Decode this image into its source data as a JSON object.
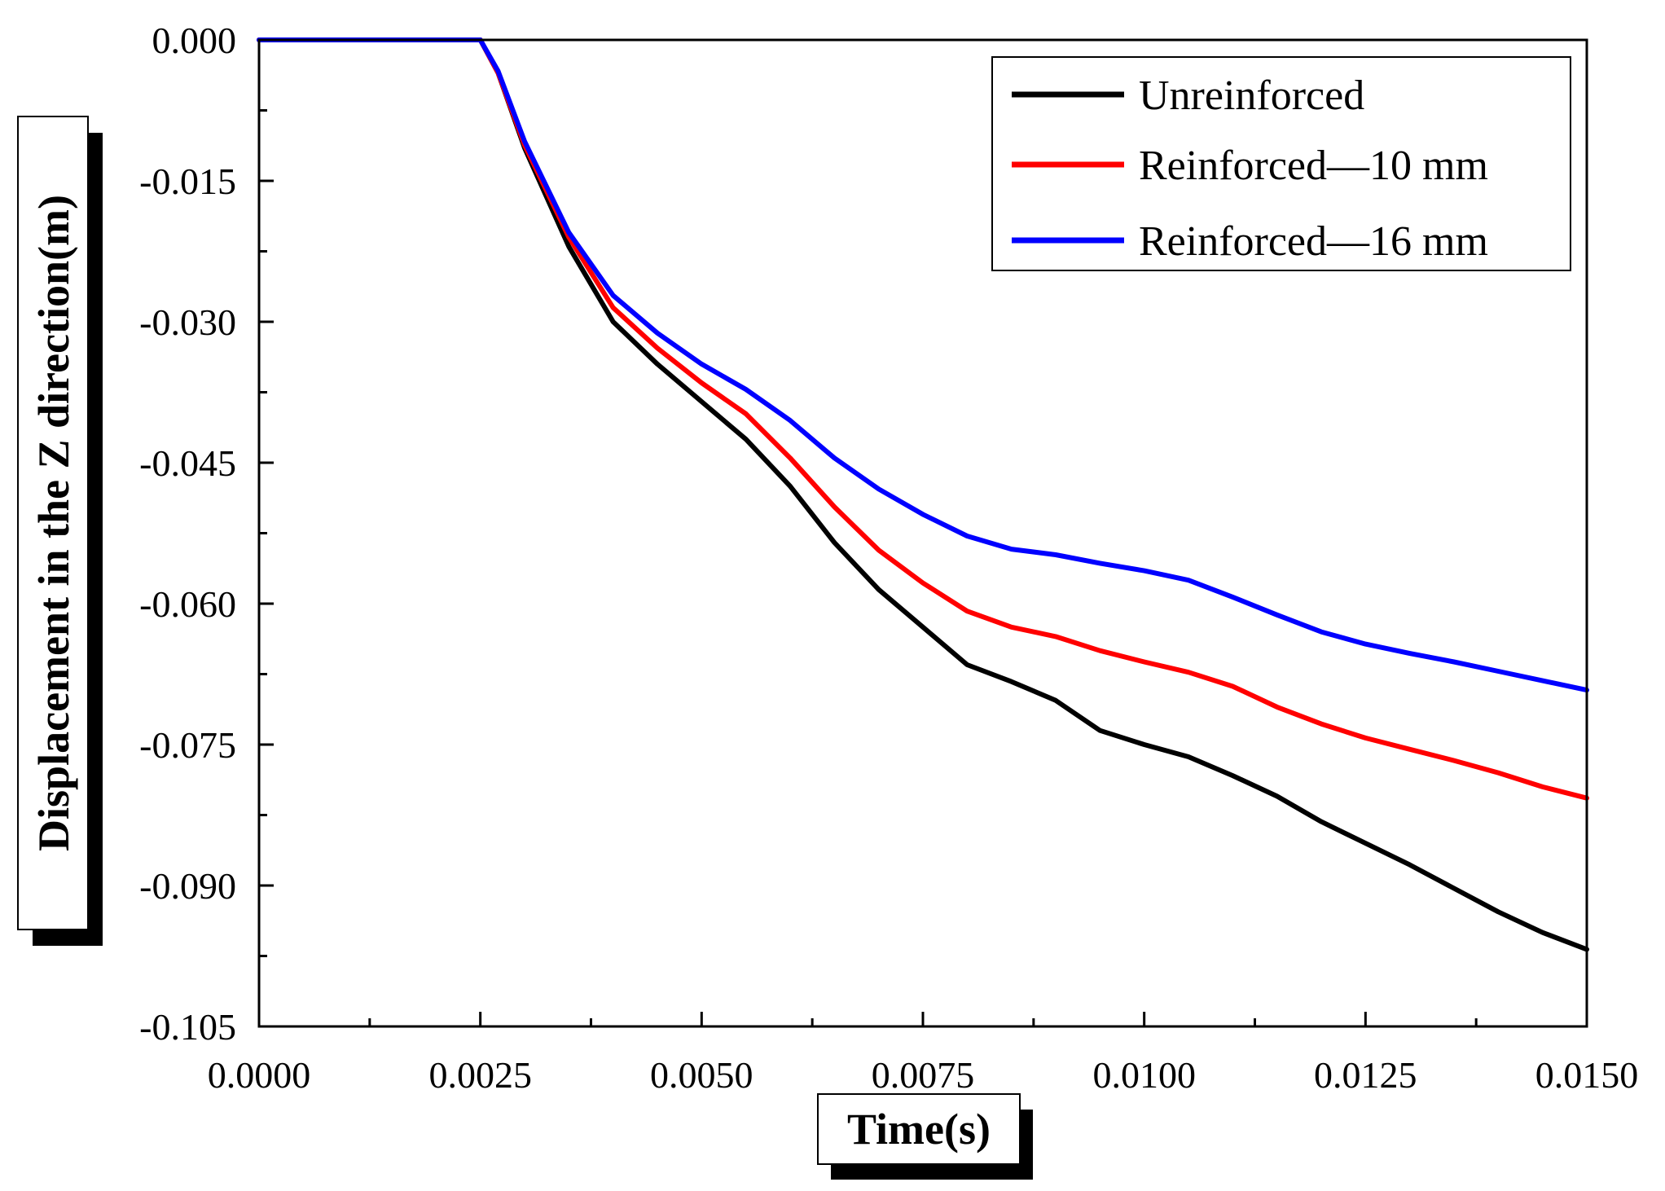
{
  "chart_data": {
    "type": "line",
    "title": "",
    "xlabel": "Time(s)",
    "ylabel": "Displacement in the Z direction(m)",
    "xlim": [
      0,
      0.015
    ],
    "ylim": [
      -0.105,
      0
    ],
    "xticks": [
      "0.0000",
      "0.0025",
      "0.0050",
      "0.0075",
      "0.0100",
      "0.0125",
      "0.0150"
    ],
    "yticks": [
      "0.000",
      "-0.015",
      "-0.030",
      "-0.045",
      "-0.060",
      "-0.075",
      "-0.090",
      "-0.105"
    ],
    "legend_position": "top-right",
    "grid": false,
    "series": [
      {
        "name": "Unreinforced",
        "color": "#000000",
        "points": [
          [
            0,
            0
          ],
          [
            0.0025,
            0
          ],
          [
            0.0027,
            -0.0035
          ],
          [
            0.003,
            -0.0115
          ],
          [
            0.0035,
            -0.022
          ],
          [
            0.004,
            -0.03
          ],
          [
            0.0045,
            -0.0345
          ],
          [
            0.005,
            -0.0385
          ],
          [
            0.0055,
            -0.0425
          ],
          [
            0.006,
            -0.0475
          ],
          [
            0.0065,
            -0.0535
          ],
          [
            0.007,
            -0.0585
          ],
          [
            0.0075,
            -0.0625
          ],
          [
            0.008,
            -0.0665
          ],
          [
            0.0085,
            -0.0683
          ],
          [
            0.009,
            -0.0703
          ],
          [
            0.0095,
            -0.0735
          ],
          [
            0.01,
            -0.075
          ],
          [
            0.0105,
            -0.0763
          ],
          [
            0.011,
            -0.0783
          ],
          [
            0.0115,
            -0.0805
          ],
          [
            0.012,
            -0.0832
          ],
          [
            0.0125,
            -0.0855
          ],
          [
            0.013,
            -0.0878
          ],
          [
            0.0135,
            -0.0903
          ],
          [
            0.014,
            -0.0928
          ],
          [
            0.0145,
            -0.095
          ],
          [
            0.015,
            -0.0968
          ]
        ]
      },
      {
        "name": "Reinforced—10 mm",
        "color": "#ff0000",
        "points": [
          [
            0,
            0
          ],
          [
            0.0025,
            0
          ],
          [
            0.0027,
            -0.0035
          ],
          [
            0.003,
            -0.0112
          ],
          [
            0.0035,
            -0.021
          ],
          [
            0.004,
            -0.0285
          ],
          [
            0.0045,
            -0.0328
          ],
          [
            0.005,
            -0.0365
          ],
          [
            0.0055,
            -0.0398
          ],
          [
            0.006,
            -0.0445
          ],
          [
            0.0065,
            -0.0497
          ],
          [
            0.007,
            -0.0543
          ],
          [
            0.0075,
            -0.0578
          ],
          [
            0.008,
            -0.0608
          ],
          [
            0.0085,
            -0.0625
          ],
          [
            0.009,
            -0.0635
          ],
          [
            0.0095,
            -0.065
          ],
          [
            0.01,
            -0.0662
          ],
          [
            0.0105,
            -0.0673
          ],
          [
            0.011,
            -0.0688
          ],
          [
            0.0115,
            -0.071
          ],
          [
            0.012,
            -0.0728
          ],
          [
            0.0125,
            -0.0743
          ],
          [
            0.013,
            -0.0755
          ],
          [
            0.0135,
            -0.0767
          ],
          [
            0.014,
            -0.078
          ],
          [
            0.0145,
            -0.0795
          ],
          [
            0.015,
            -0.0807
          ]
        ]
      },
      {
        "name": "Reinforced—16 mm",
        "color": "#0000ff",
        "points": [
          [
            0,
            0
          ],
          [
            0.0025,
            0
          ],
          [
            0.0027,
            -0.0033
          ],
          [
            0.003,
            -0.0108
          ],
          [
            0.0035,
            -0.0205
          ],
          [
            0.004,
            -0.0272
          ],
          [
            0.0045,
            -0.0312
          ],
          [
            0.005,
            -0.0345
          ],
          [
            0.0055,
            -0.0372
          ],
          [
            0.006,
            -0.0405
          ],
          [
            0.0065,
            -0.0445
          ],
          [
            0.007,
            -0.0478
          ],
          [
            0.0075,
            -0.0505
          ],
          [
            0.008,
            -0.0528
          ],
          [
            0.0085,
            -0.0542
          ],
          [
            0.009,
            -0.0548
          ],
          [
            0.0095,
            -0.0557
          ],
          [
            0.01,
            -0.0565
          ],
          [
            0.0105,
            -0.0575
          ],
          [
            0.011,
            -0.0593
          ],
          [
            0.0115,
            -0.0612
          ],
          [
            0.012,
            -0.063
          ],
          [
            0.0125,
            -0.0643
          ],
          [
            0.013,
            -0.0653
          ],
          [
            0.0135,
            -0.0662
          ],
          [
            0.014,
            -0.0672
          ],
          [
            0.0145,
            -0.0682
          ],
          [
            0.015,
            -0.0692
          ]
        ]
      }
    ]
  }
}
